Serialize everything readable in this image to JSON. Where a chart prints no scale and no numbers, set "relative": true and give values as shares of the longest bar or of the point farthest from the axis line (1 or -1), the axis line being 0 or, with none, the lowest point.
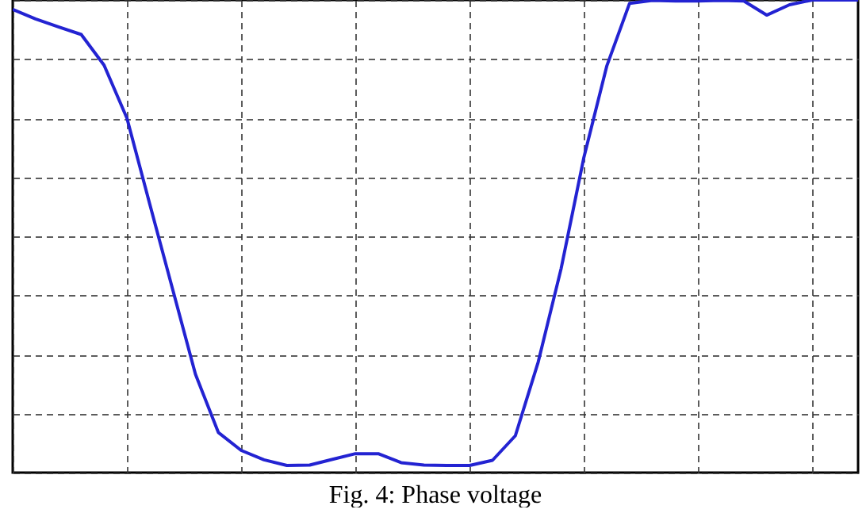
{
  "chart_data": {
    "type": "line",
    "title": "Fig. 4: Phase voltage",
    "relative": true,
    "grid": true,
    "categories": [
      null,
      null,
      null,
      null,
      null,
      null,
      null,
      null,
      null,
      null,
      null,
      null,
      null,
      null,
      null,
      null,
      null,
      null,
      null,
      null,
      null,
      null,
      null,
      null,
      null,
      null,
      null,
      null,
      null,
      null,
      null,
      null,
      null,
      null,
      null,
      null,
      null,
      null
    ],
    "series": [
      {
        "color": "#2323d2",
        "values": [
          0.98,
          0.96,
          0.943,
          0.927,
          0.862,
          0.75,
          0.568,
          0.388,
          0.208,
          0.085,
          0.047,
          0.027,
          0.015,
          0.016,
          0.028,
          0.04,
          0.04,
          0.021,
          0.016,
          0.015,
          0.015,
          0.026,
          0.078,
          0.234,
          0.431,
          0.667,
          0.86,
          0.993,
          0.999,
          0.998,
          0.998,
          0.999,
          0.998,
          0.968,
          0.99,
          1,
          1,
          1
        ]
      }
    ]
  }
}
